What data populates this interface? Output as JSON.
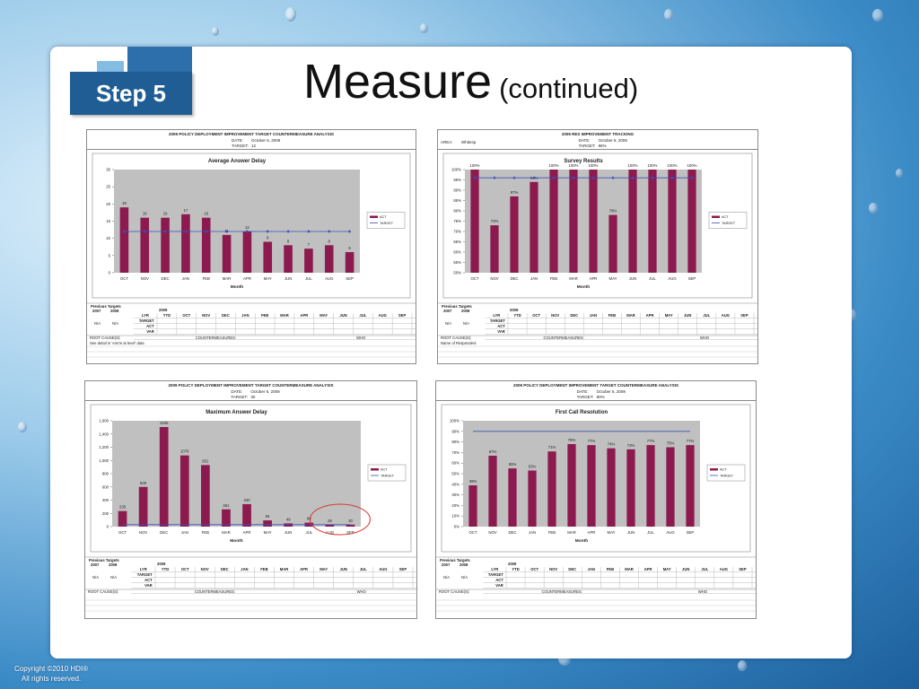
{
  "step_label": "Step 5",
  "title": "Measure",
  "title_sub": "(continued)",
  "copyright": [
    "Copyright ©2010 HDI®",
    "All rights reserved."
  ],
  "colors": {
    "bar": "#8c1a4e",
    "target": "#3b4fb5",
    "plot_bg": "#c0c0c0"
  },
  "table_labels": {
    "prev_targets": "Previous Targets",
    "year_2007": "2007",
    "year_2008": "2008",
    "year_2009": "2009",
    "ytd": "YTD",
    "lyr": "LYR",
    "na": "N/A",
    "months": [
      "OCT",
      "NOV",
      "DEC",
      "JAN",
      "FEB",
      "MAR",
      "APR",
      "MAY",
      "JUN",
      "JUL",
      "AUG",
      "SEP"
    ],
    "rows": [
      "TARGET",
      "ACT",
      "VAR"
    ],
    "root": "ROOT CAUSE(S):",
    "counter": "COUNTERMEASURES:",
    "who": "WHO"
  },
  "charts": [
    {
      "header": "2009 POLICY DEPLOYMENT IMPROVEMENT TARGET COUNTERMEASURE ANALYSIS",
      "date_label": "DATE:",
      "date": "October 6, 2009",
      "target_label": "TARGET:",
      "target": "12",
      "chart_data": {
        "type": "bar",
        "title": "Average Answer Delay",
        "xlabel": "Month",
        "categories": [
          "OCT",
          "NOV",
          "DEC",
          "JAN",
          "FEB",
          "MAR",
          "APR",
          "MAY",
          "JUN",
          "JUL",
          "AUG",
          "SEP"
        ],
        "series": [
          {
            "name": "ACT",
            "values": [
              19,
              16,
              16,
              17,
              16,
              11,
              12,
              9,
              8,
              7,
              8,
              6
            ]
          }
        ],
        "target": 12,
        "target_name": "TARGET",
        "ylim": [
          0,
          30
        ],
        "yticks": [
          0,
          5,
          10,
          15,
          20,
          25,
          30
        ],
        "ytick_labels": [
          "0",
          "5",
          "10",
          "15",
          "20",
          "25",
          "30"
        ],
        "data_labels": [
          "19",
          "16",
          "16",
          "17",
          "16",
          "11",
          "12",
          "9",
          "8",
          "7",
          "8",
          "6"
        ]
      },
      "note": "See detail in 'Ans'w at level' data"
    },
    {
      "header": "2009 RES IMPROVEMENT TRACKING",
      "area_label": "AREA:",
      "area": "Whitesp",
      "date_label": "DATE:",
      "date": "October 6, 2009",
      "target_label": "TARGET:",
      "target": "96%",
      "chart_data": {
        "type": "bar",
        "title": "Survey Results",
        "xlabel": "Month",
        "categories": [
          "OCT",
          "NOV",
          "DEC",
          "JAN",
          "FEB",
          "MAR",
          "APR",
          "MAY",
          "JUN",
          "JUL",
          "AUG",
          "SEP"
        ],
        "series": [
          {
            "name": "ACT",
            "values": [
              100,
              73,
              87,
              94,
              100,
              100,
              100,
              78,
              100,
              100,
              100,
              100
            ]
          }
        ],
        "target": 96,
        "target_name": "TARGET",
        "ylim": [
          50,
          100
        ],
        "yticks": [
          50,
          55,
          60,
          65,
          70,
          75,
          80,
          85,
          90,
          95,
          100
        ],
        "ytick_labels": [
          "50%",
          "55%",
          "60%",
          "65%",
          "70%",
          "75%",
          "80%",
          "85%",
          "90%",
          "95%",
          "100%"
        ],
        "data_labels": [
          "100%",
          "73%",
          "87%",
          "94%",
          "100%",
          "100%",
          "100%",
          "78%",
          "100%",
          "100%",
          "100%",
          "100%"
        ]
      },
      "note": "Name of Respondent"
    },
    {
      "header": "2009 POLICY DEPLOYMENT IMPROVEMENT TARGET COUNTERMEASURE ANALYSIS",
      "date_label": "DATE:",
      "date": "October 6, 2009",
      "target_label": "TARGET:",
      "target": "30",
      "chart_data": {
        "type": "bar",
        "title": "Maximum Answer Delay",
        "xlabel": "Month",
        "categories": [
          "OCT",
          "NOV",
          "DEC",
          "JAN",
          "FEB",
          "MAR",
          "APR",
          "MAY",
          "JUN",
          "JUL",
          "AUG",
          "SEP"
        ],
        "series": [
          {
            "name": "ACT",
            "values": [
              235,
              600,
              1505,
              1076,
              931,
              261,
              340,
              94,
              49,
              60,
              29,
              30
            ]
          }
        ],
        "target": 30,
        "target_name": "TARGET",
        "ylim": [
          0,
          1600
        ],
        "yticks": [
          0,
          200,
          400,
          600,
          800,
          1000,
          1200,
          1400,
          1600
        ],
        "ytick_labels": [
          "0",
          "200",
          "400",
          "600",
          "800",
          "1,000",
          "1,200",
          "1,400",
          "1,600"
        ],
        "data_labels": [
          "235",
          "600",
          "1505",
          "1076",
          "931",
          "261",
          "340",
          "94",
          "49",
          "60",
          "29",
          "30"
        ],
        "highlight_months": [
          "AUG",
          "SEP"
        ]
      },
      "note": ""
    },
    {
      "header": "2009 POLICY DEPLOYMENT IMPROVEMENT TARGET COUNTERMEASURE ANALYSIS",
      "date_label": "DATE:",
      "date": "October 6, 2009",
      "target_label": "TARGET:",
      "target": "90%",
      "chart_data": {
        "type": "bar",
        "title": "First Call Resolution",
        "xlabel": "Month",
        "categories": [
          "OCT",
          "NOV",
          "DEC",
          "JAN",
          "FEB",
          "MAR",
          "APR",
          "MAY",
          "JUN",
          "JUL",
          "AUG",
          "SEP"
        ],
        "series": [
          {
            "name": "ACT",
            "values": [
              39,
              67,
              55,
              53,
              71,
              78,
              77,
              74,
              73,
              77,
              75,
              77
            ]
          }
        ],
        "target": 90,
        "target_name": "TARGET",
        "ylim": [
          0,
          100
        ],
        "yticks": [
          0,
          10,
          20,
          30,
          40,
          50,
          60,
          70,
          80,
          90,
          100
        ],
        "ytick_labels": [
          "0%",
          "10%",
          "20%",
          "30%",
          "40%",
          "50%",
          "60%",
          "70%",
          "80%",
          "90%",
          "100%"
        ],
        "data_labels": [
          "39%",
          "67%",
          "55%",
          "53%",
          "71%",
          "78%",
          "77%",
          "74%",
          "73%",
          "77%",
          "75%",
          "77%"
        ]
      },
      "note": ""
    }
  ]
}
